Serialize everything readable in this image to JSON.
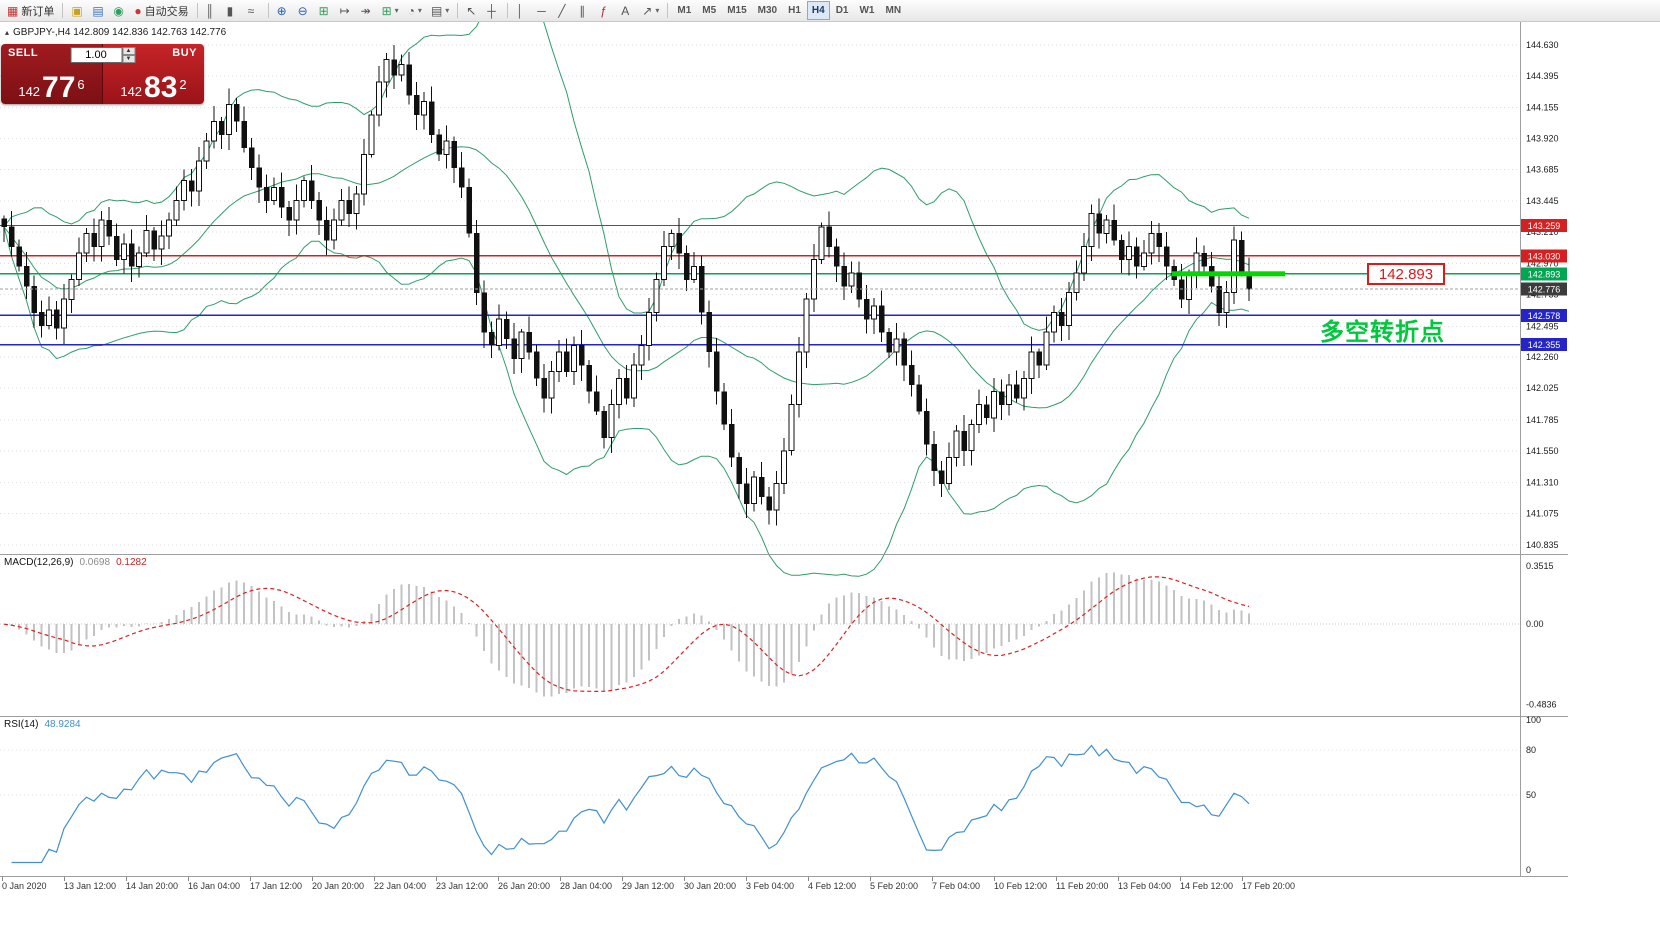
{
  "colors": {
    "band": "#2e9e68",
    "grid": "#dedede",
    "hline_red": "#d42020",
    "hline_blue": "#2424c8",
    "hline_green": "#00a650",
    "zone_green": "#00d800",
    "bid_tag": "#3c3c3c",
    "macd_hist": "#c2c2c2",
    "macd_signal": "#e02020",
    "rsi_line": "#3f8fd2"
  },
  "toolbar": {
    "items": [
      {
        "name": "new-order-button",
        "label": "新订单",
        "glyph": "▦",
        "color": "#c03030"
      },
      {
        "type": "sep"
      },
      {
        "name": "chart-window-button",
        "glyph": "▣",
        "color": "#caa21a"
      },
      {
        "name": "data-window-button",
        "glyph": "▤",
        "color": "#3a6fbf"
      },
      {
        "name": "navigator-button",
        "glyph": "◉",
        "color": "#2e9e5b"
      },
      {
        "name": "autotrading-button",
        "label": "自动交易",
        "glyph": "●",
        "color": "#cc3333"
      },
      {
        "type": "sep"
      },
      {
        "name": "bar-chart-button",
        "glyph": "║"
      },
      {
        "name": "candlestick-chart-button",
        "glyph": "▮"
      },
      {
        "name": "line-chart-button",
        "glyph": "≈"
      },
      {
        "type": "sep"
      },
      {
        "name": "zoom-in-button",
        "glyph": "⊕",
        "color": "#2a5fb4"
      },
      {
        "name": "zoom-out-button",
        "glyph": "⊖",
        "color": "#2a5fb4"
      },
      {
        "name": "tile-windows-button",
        "glyph": "⊞",
        "color": "#2e9e5b"
      },
      {
        "name": "auto-scroll-button",
        "glyph": "↦"
      },
      {
        "name": "chart-shift-button",
        "glyph": "↠"
      },
      {
        "name": "new-chart-button",
        "glyph": "⊞",
        "color": "#2e9e5b",
        "caret": true
      },
      {
        "name": "period-selector-button",
        "glyph": "◔",
        "caret": true
      },
      {
        "name": "template-button",
        "glyph": "▤",
        "caret": true
      },
      {
        "type": "sep"
      },
      {
        "name": "cursor-button",
        "glyph": "↖"
      },
      {
        "name": "crosshair-button",
        "glyph": "┼"
      },
      {
        "type": "sep"
      },
      {
        "name": "vertical-line-button",
        "glyph": "│"
      },
      {
        "name": "horizontal-line-button",
        "glyph": "─"
      },
      {
        "name": "trendline-button",
        "glyph": "╱"
      },
      {
        "name": "channel-button",
        "glyph": "∥"
      },
      {
        "name": "fibonacci-button",
        "glyph": "ƒ",
        "color": "#b03030"
      },
      {
        "name": "text-label-button",
        "glyph": "A"
      },
      {
        "name": "arrows-button",
        "glyph": "↗",
        "caret": true
      },
      {
        "type": "sep"
      }
    ],
    "timeframes": [
      {
        "label": "M1"
      },
      {
        "label": "M5"
      },
      {
        "label": "M15"
      },
      {
        "label": "M30"
      },
      {
        "label": "H1"
      },
      {
        "label": "H4",
        "active": true
      },
      {
        "label": "D1"
      },
      {
        "label": "W1"
      },
      {
        "label": "MN"
      }
    ]
  },
  "trade_panel": {
    "sell_label": "SELL",
    "buy_label": "BUY",
    "volume": "1.00",
    "bid_small": "142",
    "bid_big": "77",
    "bid_sup": "6",
    "ask_small": "142",
    "ask_big": "83",
    "ask_sup": "2"
  },
  "chart": {
    "symbol_line": "GBPJPY-,H4  142.809 142.836 142.763 142.776",
    "hlines": [
      {
        "price": 143.259,
        "label": "143.259",
        "color": "#d42020"
      },
      {
        "price": 143.03,
        "label": "143.030",
        "color": "#d42020"
      },
      {
        "price": 142.893,
        "label": "142.893",
        "color": "#00a650"
      },
      {
        "price": 142.578,
        "label": "142.578",
        "color": "#2424c8"
      },
      {
        "price": 142.355,
        "label": "142.355",
        "color": "#2424c8"
      }
    ],
    "bid_line": {
      "price": 142.776,
      "label": "142.776"
    },
    "support_zone": {
      "price": 142.893,
      "color": "#00d800"
    },
    "price_callout": {
      "text": "142.893"
    },
    "cn_annotation": {
      "text": "多空转折点"
    }
  },
  "chart_data": {
    "type": "candlestick",
    "symbol": "GBPJPY-",
    "timeframe": "H4",
    "current_ohlc": {
      "open": "142.809",
      "high": "142.836",
      "low": "142.763",
      "close": "142.776"
    },
    "overlays": [
      "Bollinger Bands"
    ],
    "ylim": [
      140.835,
      144.63
    ],
    "price_axis": [
      144.63,
      144.395,
      144.155,
      143.92,
      143.685,
      143.445,
      143.21,
      142.97,
      142.735,
      142.495,
      142.26,
      142.025,
      141.785,
      141.55,
      141.31,
      141.075,
      140.835
    ],
    "x_axis_labels": [
      "0 Jan 2020",
      "13 Jan 12:00",
      "14 Jan 20:00",
      "16 Jan 04:00",
      "17 Jan 12:00",
      "20 Jan 20:00",
      "22 Jan 04:00",
      "23 Jan 12:00",
      "26 Jan 20:00",
      "28 Jan 04:00",
      "29 Jan 12:00",
      "30 Jan 20:00",
      "3 Feb 04:00",
      "4 Feb 12:00",
      "5 Feb 20:00",
      "7 Feb 04:00",
      "10 Feb 12:00",
      "11 Feb 20:00",
      "13 Feb 04:00",
      "14 Feb 12:00",
      "17 Feb 20:00"
    ],
    "closes": [
      143.25,
      143.1,
      142.95,
      142.8,
      142.6,
      142.5,
      142.62,
      142.48,
      142.7,
      142.85,
      143.05,
      143.2,
      143.1,
      143.3,
      143.18,
      143.0,
      143.12,
      142.95,
      143.05,
      143.22,
      143.08,
      143.18,
      143.3,
      143.45,
      143.6,
      143.52,
      143.75,
      143.9,
      144.05,
      143.95,
      144.18,
      144.05,
      143.85,
      143.7,
      143.55,
      143.45,
      143.55,
      143.4,
      143.3,
      143.45,
      143.6,
      143.45,
      143.3,
      143.15,
      143.3,
      143.45,
      143.35,
      143.5,
      143.8,
      144.1,
      144.35,
      144.52,
      144.4,
      144.48,
      144.25,
      144.1,
      144.2,
      143.95,
      143.8,
      143.9,
      143.7,
      143.55,
      143.2,
      142.75,
      142.45,
      142.35,
      142.55,
      142.4,
      142.25,
      142.45,
      142.3,
      142.1,
      141.95,
      142.15,
      142.3,
      142.15,
      142.35,
      142.2,
      142.0,
      141.85,
      141.65,
      141.9,
      142.1,
      141.95,
      142.2,
      142.35,
      142.6,
      142.85,
      143.1,
      143.2,
      143.05,
      142.85,
      142.95,
      142.6,
      142.3,
      142.0,
      141.75,
      141.5,
      141.3,
      141.15,
      141.35,
      141.2,
      141.1,
      141.3,
      141.55,
      141.9,
      142.3,
      142.7,
      143.0,
      143.25,
      143.1,
      142.95,
      142.8,
      142.9,
      142.7,
      142.55,
      142.65,
      142.45,
      142.3,
      142.4,
      142.2,
      142.05,
      141.85,
      141.6,
      141.4,
      141.3,
      141.5,
      141.7,
      141.55,
      141.75,
      141.9,
      141.8,
      142.0,
      141.9,
      142.05,
      141.95,
      142.1,
      142.3,
      142.2,
      142.45,
      142.6,
      142.5,
      142.75,
      142.9,
      143.1,
      143.35,
      143.2,
      143.3,
      143.15,
      143.0,
      143.1,
      142.95,
      143.05,
      143.2,
      143.1,
      142.95,
      142.85,
      142.7,
      142.9,
      143.05,
      142.95,
      142.8,
      142.6,
      142.75,
      143.15,
      142.9,
      142.776
    ]
  },
  "macd": {
    "label": "MACD(12,26,9)",
    "main_value": "0.0698",
    "signal_value": "0.1282",
    "axis_labels": [
      "0.3515",
      "0.00",
      "-0.4836"
    ],
    "axis_values": [
      0.3515,
      0,
      -0.4836
    ]
  },
  "rsi": {
    "label": "RSI(14)",
    "value": "48.9284",
    "axis_labels": [
      "100",
      "80",
      "50",
      "0"
    ],
    "axis_values": [
      100,
      80,
      50,
      0
    ]
  }
}
